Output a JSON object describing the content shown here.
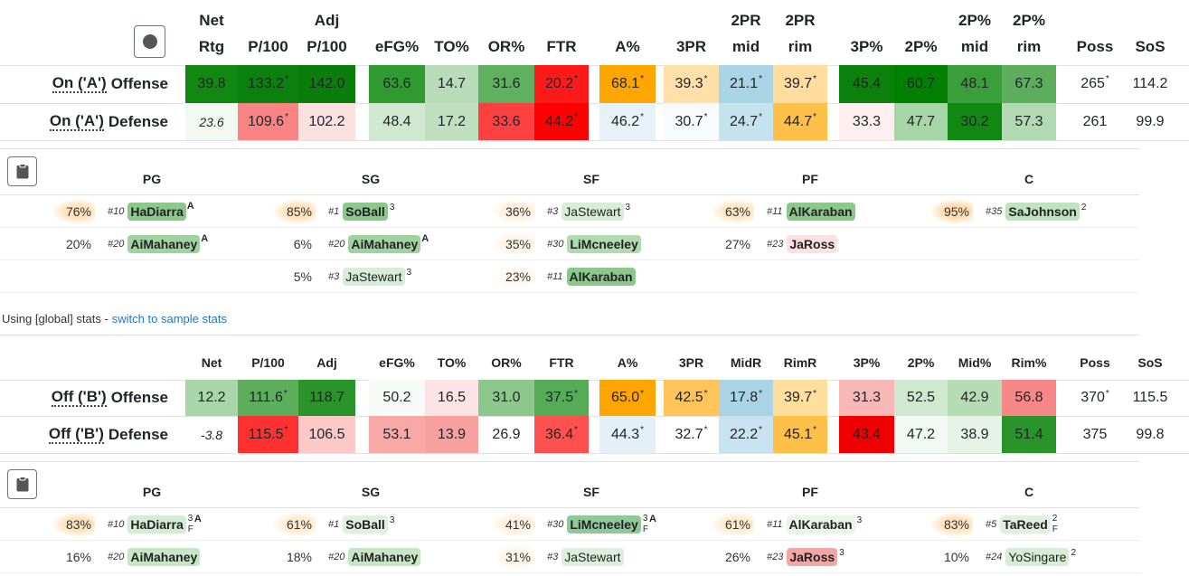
{
  "tables": [
    {
      "headers": [
        {
          "top": "Net",
          "bottom": "Rtg"
        },
        {
          "bottom": "P/100"
        },
        {
          "top": "Adj",
          "bottom": "P/100"
        },
        {
          "bottom": "eFG%"
        },
        {
          "bottom": "TO%"
        },
        {
          "bottom": "OR%"
        },
        {
          "bottom": "FTR"
        },
        {
          "bottom": "A%"
        },
        {
          "bottom": "3PR"
        },
        {
          "top": "2PR",
          "bottom": "mid"
        },
        {
          "top": "2PR",
          "bottom": "rim"
        },
        {
          "bottom": "3P%"
        },
        {
          "bottom": "2P%"
        },
        {
          "top": "2P%",
          "bottom": "mid"
        },
        {
          "top": "2P%",
          "bottom": "rim"
        },
        {
          "bottom": "Poss"
        },
        {
          "bottom": "SoS"
        }
      ],
      "rows": [
        {
          "tag": "On ('A')",
          "role": "Offense",
          "cells": [
            {
              "v": "39.8",
              "bg": "#118811"
            },
            {
              "v": "133.2",
              "sup": "*",
              "bg": "#0c800c"
            },
            {
              "v": "142.0",
              "bg": "#0b7d0b"
            },
            {
              "v": "63.6",
              "bg": "#2f9a2f"
            },
            {
              "v": "14.7",
              "bg": "#b8dcb8"
            },
            {
              "v": "31.6",
              "bg": "#5fb05f"
            },
            {
              "v": "20.2",
              "sup": "*",
              "bg": "#ff1a1a"
            },
            {
              "v": "68.1",
              "sup": "*",
              "bg": "#ffa500"
            },
            {
              "v": "39.3",
              "sup": "*",
              "bg": "#ffe0a8"
            },
            {
              "v": "21.1",
              "sup": "*",
              "bg": "#a8d4e6"
            },
            {
              "v": "39.7",
              "sup": "*",
              "bg": "#ffdd9e"
            },
            {
              "v": "45.4",
              "bg": "#0b800b"
            },
            {
              "v": "60.7",
              "bg": "#008000"
            },
            {
              "v": "48.1",
              "bg": "#3a9e3a"
            },
            {
              "v": "67.3",
              "bg": "#5cae5c"
            },
            {
              "v": "265",
              "sup": "*"
            },
            {
              "v": "114.2"
            }
          ]
        },
        {
          "tag": "On ('A')",
          "role": "Defense",
          "cells": [
            {
              "v": "23.6",
              "italic": true,
              "bg": "#f2f9f2"
            },
            {
              "v": "109.6",
              "sup": "*",
              "bg": "#fa8484"
            },
            {
              "v": "102.2",
              "bg": "#fde0e0"
            },
            {
              "v": "48.4",
              "bg": "#cfe8cf"
            },
            {
              "v": "17.2",
              "bg": "#bfe0bf"
            },
            {
              "v": "33.6",
              "bg": "#ff4040"
            },
            {
              "v": "44.2",
              "sup": "*",
              "bg": "#ff0000"
            },
            {
              "v": "46.2",
              "sup": "*",
              "bg": "#e6f2f8"
            },
            {
              "v": "30.7",
              "sup": "*",
              "bg": "#f7fbfd"
            },
            {
              "v": "24.7",
              "sup": "*",
              "bg": "#c5e3ee"
            },
            {
              "v": "44.7",
              "sup": "*",
              "bg": "#ffc04a"
            },
            {
              "v": "33.3",
              "bg": "#fff0f0"
            },
            {
              "v": "47.7",
              "bg": "#a6d5a6"
            },
            {
              "v": "30.2",
              "bg": "#118811"
            },
            {
              "v": "57.3",
              "bg": "#b2dab2"
            },
            {
              "v": "261"
            },
            {
              "v": "99.9"
            }
          ]
        }
      ],
      "lineups": {
        "positions": [
          "PG",
          "SG",
          "SF",
          "PF",
          "C"
        ],
        "groups": [
          [
            {
              "pct": "76%",
              "pct_bg": "#ffe2bd",
              "num": "#10",
              "name": "HaDiarra",
              "bg": "#8cc88c",
              "mark": "A"
            },
            {
              "pct": "20%",
              "num": "#20",
              "name": "AiMahaney",
              "bg": "#a0d2a0",
              "mark": "A"
            }
          ],
          [
            {
              "pct": "85%",
              "pct_bg": "#ffe2bd",
              "num": "#1",
              "name": "SoBall",
              "bg": "#8cc88c",
              "sup": "3"
            },
            {
              "pct": "6%",
              "num": "#20",
              "name": "AiMahaney",
              "bg": "#a0d2a0",
              "mark": "A"
            },
            {
              "pct": "5%",
              "num": "#3",
              "name": "JaStewart",
              "bg": "#d8edd8",
              "sup": "3"
            }
          ],
          [
            {
              "pct": "36%",
              "pct_bg": "#fff0de",
              "num": "#3",
              "name": "JaStewart",
              "bg": "#d8edd8",
              "sup": "3"
            },
            {
              "pct": "35%",
              "pct_bg": "#fff4e6",
              "num": "#30",
              "name": "LiMcneeley",
              "bg": "#b0dab0"
            },
            {
              "pct": "23%",
              "pct_bg": "#fff7ee",
              "num": "#11",
              "name": "AlKaraban",
              "bg": "#8cc88c"
            }
          ],
          [
            {
              "pct": "63%",
              "pct_bg": "#ffe6c6",
              "num": "#11",
              "name": "AlKaraban",
              "bg": "#8cc88c"
            },
            {
              "pct": "27%",
              "num": "#23",
              "name": "JaRoss",
              "bg": "#fde0e0"
            }
          ],
          [
            {
              "pct": "95%",
              "pct_bg": "#ffdcb0",
              "num": "#35",
              "name": "SaJohnson",
              "bg": "#bfe2bf",
              "sup": "2"
            }
          ]
        ]
      }
    },
    {
      "headers": [
        {
          "bottom": "Net"
        },
        {
          "bottom": "P/100"
        },
        {
          "bottom": "Adj"
        },
        {
          "bottom": "eFG%"
        },
        {
          "bottom": "TO%"
        },
        {
          "bottom": "OR%"
        },
        {
          "bottom": "FTR"
        },
        {
          "bottom": "A%"
        },
        {
          "bottom": "3PR"
        },
        {
          "bottom": "MidR"
        },
        {
          "bottom": "RimR"
        },
        {
          "bottom": "3P%"
        },
        {
          "bottom": "2P%"
        },
        {
          "bottom": "Mid%"
        },
        {
          "bottom": "Rim%"
        },
        {
          "bottom": "Poss"
        },
        {
          "bottom": "SoS"
        }
      ],
      "rows": [
        {
          "tag": "Off ('B')",
          "role": "Offense",
          "cells": [
            {
              "v": "12.2",
              "bg": "#a8d6a8"
            },
            {
              "v": "111.6",
              "sup": "*",
              "bg": "#5cae5c"
            },
            {
              "v": "118.7",
              "bg": "#2a932a"
            },
            {
              "v": "50.2",
              "bg": "#f7fbf7"
            },
            {
              "v": "16.5",
              "bg": "#fde4e4"
            },
            {
              "v": "31.0",
              "bg": "#8cc88c"
            },
            {
              "v": "37.5",
              "sup": "*",
              "bg": "#56ab56"
            },
            {
              "v": "65.0",
              "sup": "*",
              "bg": "#ffa500"
            },
            {
              "v": "42.5",
              "sup": "*",
              "bg": "#ffc55a"
            },
            {
              "v": "17.8",
              "sup": "*",
              "bg": "#aad4e6"
            },
            {
              "v": "39.7",
              "sup": "*",
              "bg": "#ffdf9e"
            },
            {
              "v": "31.3",
              "bg": "#f8b8b8"
            },
            {
              "v": "52.5",
              "bg": "#cfe8cf"
            },
            {
              "v": "42.9",
              "bg": "#b6dcb6"
            },
            {
              "v": "56.8",
              "bg": "#f88888"
            },
            {
              "v": "370",
              "sup": "*"
            },
            {
              "v": "115.5"
            }
          ]
        },
        {
          "tag": "Off ('B')",
          "role": "Defense",
          "cells": [
            {
              "v": "-3.8",
              "italic": true
            },
            {
              "v": "115.5",
              "sup": "*",
              "bg": "#ff3030"
            },
            {
              "v": "106.5",
              "bg": "#fcc8c8"
            },
            {
              "v": "53.1",
              "bg": "#f9a8a8"
            },
            {
              "v": "13.9",
              "bg": "#f7a0a0"
            },
            {
              "v": "26.9"
            },
            {
              "v": "36.4",
              "sup": "*",
              "bg": "#ff5050"
            },
            {
              "v": "44.3",
              "sup": "*",
              "bg": "#e3f0f7"
            },
            {
              "v": "32.7",
              "sup": "*"
            },
            {
              "v": "22.2",
              "sup": "*",
              "bg": "#c8e3ef"
            },
            {
              "v": "45.1",
              "sup": "*",
              "bg": "#ffc04a"
            },
            {
              "v": "43.4",
              "bg": "#f00000"
            },
            {
              "v": "47.2",
              "bg": "#f2f9f2"
            },
            {
              "v": "38.9",
              "bg": "#e6f3e6"
            },
            {
              "v": "51.4",
              "bg": "#2a932a"
            },
            {
              "v": "375"
            },
            {
              "v": "99.8"
            }
          ]
        }
      ],
      "lineups": {
        "positions": [
          "PG",
          "SG",
          "SF",
          "PF",
          "C"
        ],
        "groups": [
          [
            {
              "pct": "83%",
              "pct_bg": "#ffe2bd",
              "num": "#10",
              "name": "HaDiarra",
              "bg": "#d4ecd4",
              "sup": "3",
              "sub": "F",
              "mark": "A"
            },
            {
              "pct": "16%",
              "num": "#20",
              "name": "AiMahaney",
              "bg": "#c6e6c6"
            }
          ],
          [
            {
              "pct": "61%",
              "pct_bg": "#ffeacf",
              "num": "#1",
              "name": "SoBall",
              "bg": "#dff0df",
              "sup": "3"
            },
            {
              "pct": "18%",
              "num": "#20",
              "name": "AiMahaney",
              "bg": "#c6e6c6"
            }
          ],
          [
            {
              "pct": "41%",
              "pct_bg": "#fff0de",
              "num": "#30",
              "name": "LiMcneeley",
              "bg": "#8fc99a",
              "sup": "3",
              "sub": "F",
              "mark": "A"
            },
            {
              "pct": "31%",
              "pct_bg": "#fff5ea",
              "num": "#3",
              "name": "JaStewart",
              "bg": "#dcefdc"
            }
          ],
          [
            {
              "pct": "61%",
              "pct_bg": "#ffeacf",
              "num": "#11",
              "name": "AlKaraban",
              "bg": "#e8f5e8",
              "sup": "3"
            },
            {
              "pct": "26%",
              "num": "#23",
              "name": "JaRoss",
              "bg": "#f4a6a6",
              "sup": "3"
            }
          ],
          [
            {
              "pct": "83%",
              "pct_bg": "#ffe2bd",
              "num": "#5",
              "name": "TaReed",
              "bg": "#e0f0e0",
              "sup": "2",
              "sub": "F"
            },
            {
              "pct": "10%",
              "num": "#24",
              "name": "YoSingare",
              "bg": "#d8edd8",
              "sup": "2"
            }
          ]
        ]
      }
    }
  ],
  "note": {
    "text": "Using [global] stats -",
    "link": "switch to sample stats"
  }
}
